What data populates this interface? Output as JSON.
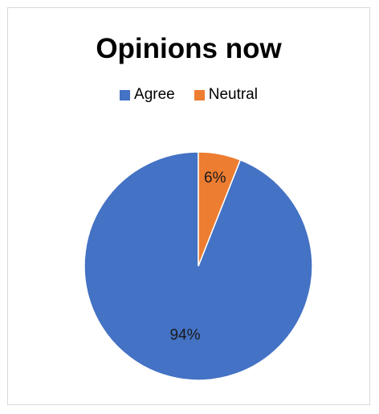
{
  "chart_data": {
    "type": "pie",
    "title": "Opinions now",
    "categories": [
      "Agree",
      "Neutral"
    ],
    "values": [
      94,
      6
    ],
    "value_labels": [
      "94%",
      "6%"
    ],
    "colors": [
      "#4472c4",
      "#ed7d31"
    ],
    "legend_position": "top"
  }
}
